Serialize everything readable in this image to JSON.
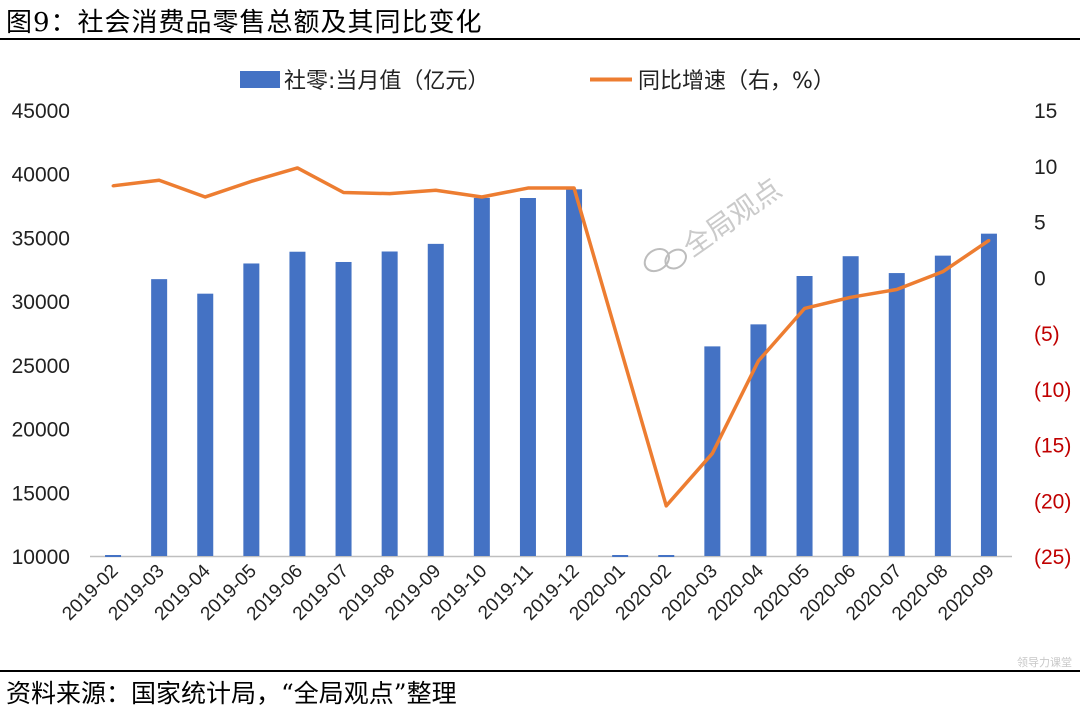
{
  "figure": {
    "title": "图9：社会消费品零售总额及其同比变化",
    "source": "资料来源：国家统计局，“全局观点”整理",
    "watermark": "全局观点",
    "corner_watermark": "领导力课堂"
  },
  "colors": {
    "bar": "#4472c4",
    "line": "#ed7d31",
    "negative_tick": "#c00000"
  },
  "chart_data": {
    "type": "bar",
    "categories": [
      "2019-02",
      "2019-03",
      "2019-04",
      "2019-05",
      "2019-06",
      "2019-07",
      "2019-08",
      "2019-09",
      "2019-10",
      "2019-11",
      "2019-12",
      "2020-01",
      "2020-02",
      "2020-03",
      "2020-04",
      "2020-05",
      "2020-06",
      "2020-07",
      "2020-08",
      "2020-09"
    ],
    "series": [
      {
        "name": "社零:当月值（亿元）",
        "type": "bar",
        "axis": "left",
        "values": [
          null,
          31726,
          30586,
          32956,
          33878,
          33073,
          33896,
          34495,
          38104,
          38094,
          38777,
          null,
          null,
          26450,
          28178,
          31973,
          33526,
          32203,
          33571,
          35295
        ]
      },
      {
        "name": "同比增速（右，%）",
        "type": "line",
        "axis": "right",
        "values": [
          8.2,
          8.7,
          7.2,
          8.6,
          9.8,
          7.6,
          7.5,
          7.8,
          7.2,
          8.0,
          8.0,
          null,
          -20.5,
          -15.8,
          -7.5,
          -2.8,
          -1.8,
          -1.1,
          0.5,
          3.3
        ]
      }
    ],
    "y_left": {
      "ylim": [
        10000,
        45000
      ],
      "ticks": [
        "10000",
        "15000",
        "20000",
        "25000",
        "30000",
        "35000",
        "40000",
        "45000"
      ]
    },
    "y_right": {
      "ylim": [
        -25,
        15
      ],
      "ticks": [
        "(25)",
        "(20)",
        "(15)",
        "(10)",
        "(5)",
        "0",
        "5",
        "10",
        "15"
      ]
    },
    "legend": "top",
    "grid": false
  }
}
